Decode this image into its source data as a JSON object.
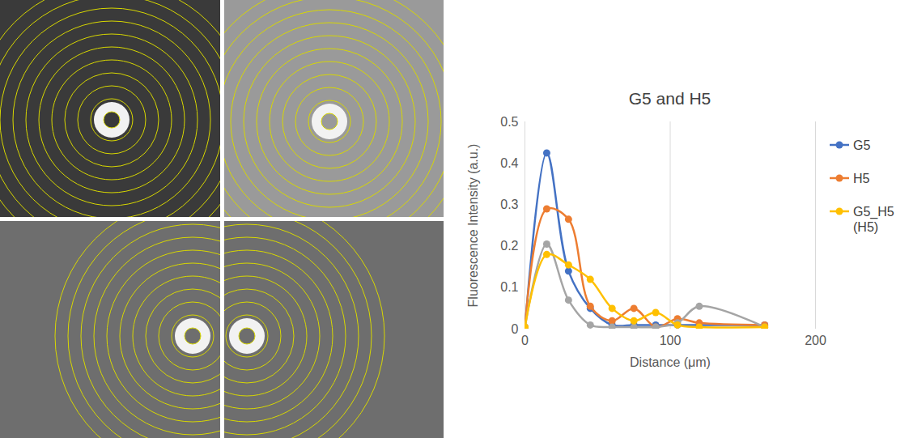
{
  "chart_data": {
    "type": "line",
    "title": "G5 and H5",
    "x_label": "Distance (μm)",
    "y_label": "Fluorescence Intensity (a.u.)",
    "x": [
      0,
      15,
      30,
      45,
      60,
      75,
      90,
      105,
      120,
      165
    ],
    "series": [
      {
        "name": "G5",
        "color": "#4472c4",
        "values": [
          0,
          0.425,
          0.14,
          0.05,
          0.01,
          0.01,
          0.01,
          0.01,
          0.01,
          0.01
        ]
      },
      {
        "name": "H5",
        "color": "#ed7d31",
        "values": [
          0.005,
          0.29,
          0.265,
          0.055,
          0.02,
          0.05,
          0.005,
          0.025,
          0.015,
          0.01
        ]
      },
      {
        "color": "#a5a5a5",
        "values": [
          0.005,
          0.205,
          0.07,
          0.01,
          0.005,
          0.005,
          0.005,
          0.015,
          0.055,
          0.005
        ]
      },
      {
        "name": "G5_H5 (H5)",
        "color": "#ffc000",
        "values": [
          0.005,
          0.18,
          0.155,
          0.12,
          0.05,
          0.02,
          0.04,
          0.01,
          0.005,
          0.005
        ]
      }
    ],
    "xlim": [
      0,
      200
    ],
    "xticks": [
      0,
      100,
      200
    ],
    "ylim": [
      0,
      0.5
    ],
    "yticks": [
      0,
      0.1,
      0.2,
      0.3,
      0.4,
      0.5
    ],
    "grid": "x",
    "legend": "right",
    "marker": "circle",
    "line_style": "smooth"
  }
}
